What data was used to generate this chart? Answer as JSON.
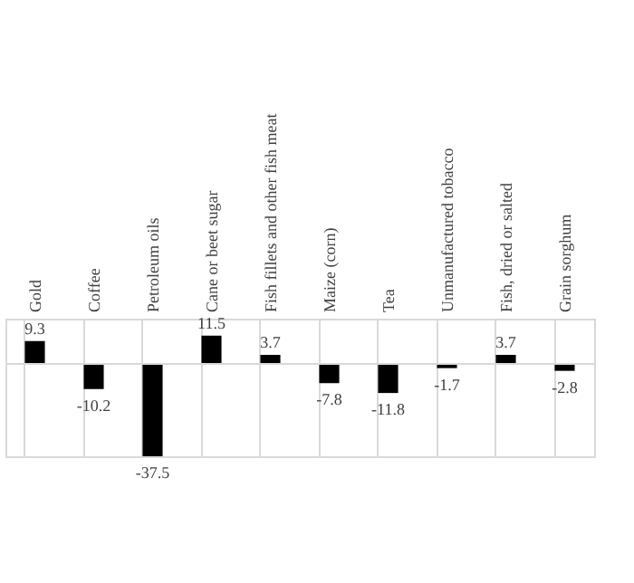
{
  "chart_data": {
    "type": "bar",
    "categories": [
      "Gold",
      "Coffee",
      "Petroleum oils",
      "Cane or beet sugar",
      "Fish fillets and other fish meat",
      "Maize (corn)",
      "Tea",
      "Unmanufactured tobacco",
      "Fish, dried or salted",
      "Grain sorghum"
    ],
    "values": [
      9.3,
      -10.2,
      -37.5,
      11.5,
      3.7,
      -7.8,
      -11.8,
      -1.7,
      3.7,
      -2.8
    ],
    "color": "#000000",
    "data_labels": true,
    "grid": "x",
    "tick_labels": "x"
  }
}
